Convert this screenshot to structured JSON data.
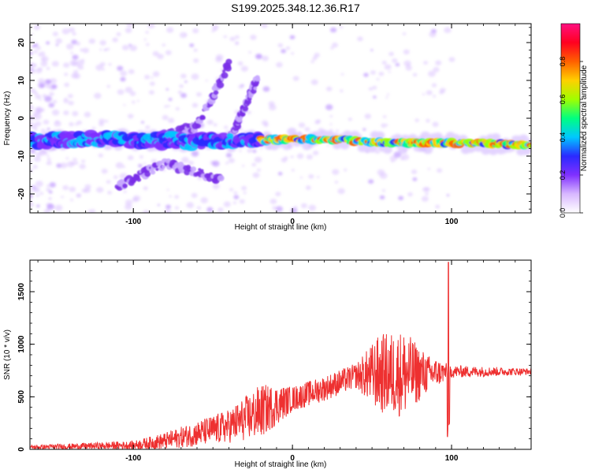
{
  "title": "S199.2025.348.12.36.R17",
  "chart_data": [
    {
      "type": "heatmap",
      "title": "S199.2025.348.12.36.R17",
      "xlabel": "Height of straight line (km)",
      "ylabel": "Frequency (Hz)",
      "xlim": [
        -165,
        150
      ],
      "ylim": [
        -25,
        25
      ],
      "xticks": [
        -100,
        0,
        100
      ],
      "yticks": [
        -20,
        -10,
        0,
        10,
        20
      ],
      "colorbar": {
        "label": "Normalized spectral amplitude",
        "range": [
          0,
          1
        ],
        "ticks": [
          0,
          0.2,
          0.4,
          0.6,
          0.8
        ],
        "tick_labels": [
          "0.0",
          "0.2",
          "0.4",
          "0.6",
          "0.8"
        ],
        "colors": [
          "#ffffff",
          "#d8b8ff",
          "#8030ff",
          "#2a2aff",
          "#00c8ff",
          "#00ff80",
          "#a0ff00",
          "#ffd000",
          "#ff6000",
          "#ff0020",
          "#ff1080"
        ]
      },
      "ridge": [
        {
          "x": -160,
          "freq": -6
        },
        {
          "x": -120,
          "freq": -5.5
        },
        {
          "x": -80,
          "freq": -6
        },
        {
          "x": -40,
          "freq": -6
        },
        {
          "x": 0,
          "freq": -5.5
        },
        {
          "x": 20,
          "freq": -5.5
        },
        {
          "x": 60,
          "freq": -6.5
        },
        {
          "x": 100,
          "freq": -6.5
        },
        {
          "x": 150,
          "freq": -7
        }
      ],
      "branches": [
        {
          "name": "upper arc",
          "points": [
            {
              "x": -90,
              "freq": -6
            },
            {
              "x": -60,
              "freq": -2
            },
            {
              "x": -40,
              "freq": 14
            }
          ]
        },
        {
          "name": "upper arc 2",
          "points": [
            {
              "x": -40,
              "freq": -6
            },
            {
              "x": -22,
              "freq": 10
            }
          ]
        },
        {
          "name": "lower arc",
          "points": [
            {
              "x": -110,
              "freq": -18
            },
            {
              "x": -80,
              "freq": -12
            },
            {
              "x": -45,
              "freq": -16
            }
          ]
        }
      ]
    },
    {
      "type": "line",
      "xlabel": "Height of straight line (km)",
      "ylabel": "SNR (10 * v/v)",
      "xlim": [
        -165,
        150
      ],
      "ylim": [
        0,
        1800
      ],
      "xticks": [
        -100,
        0,
        100
      ],
      "yticks": [
        0,
        500,
        1000,
        1500
      ],
      "color": "#ee3030",
      "envelope": [
        {
          "x": -165,
          "base": 20,
          "amp": 20
        },
        {
          "x": -100,
          "base": 40,
          "amp": 40
        },
        {
          "x": -80,
          "base": 80,
          "amp": 80
        },
        {
          "x": -60,
          "base": 150,
          "amp": 120
        },
        {
          "x": -40,
          "base": 220,
          "amp": 160
        },
        {
          "x": -20,
          "base": 360,
          "amp": 260
        },
        {
          "x": 0,
          "base": 480,
          "amp": 120
        },
        {
          "x": 20,
          "base": 580,
          "amp": 120
        },
        {
          "x": 40,
          "base": 700,
          "amp": 120
        },
        {
          "x": 55,
          "base": 720,
          "amp": 380
        },
        {
          "x": 70,
          "base": 720,
          "amp": 420
        },
        {
          "x": 85,
          "base": 720,
          "amp": 180
        },
        {
          "x": 100,
          "base": 740,
          "amp": 60
        },
        {
          "x": 150,
          "base": 740,
          "amp": 30
        }
      ],
      "peak": {
        "x": 98,
        "value": 1780
      },
      "dip": {
        "x": 98,
        "value": 100
      }
    }
  ]
}
